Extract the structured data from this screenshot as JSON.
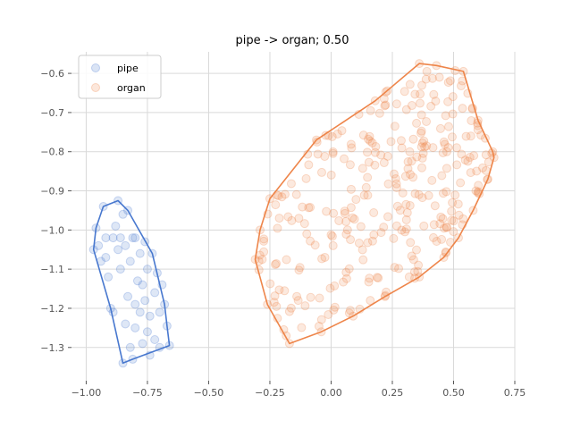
{
  "chart_data": {
    "type": "scatter",
    "title": "pipe -> organ; 0.50",
    "xlabel": "",
    "ylabel": "",
    "xlim": [
      -1.06,
      0.75
    ],
    "ylim": [
      -1.385,
      -0.545
    ],
    "xticks": [
      -1.0,
      -0.75,
      -0.5,
      -0.25,
      0.0,
      0.25,
      0.5,
      0.75
    ],
    "xtick_labels": [
      "−1.00",
      "−0.75",
      "−0.50",
      "−0.25",
      "0.00",
      "0.25",
      "0.50",
      "0.75"
    ],
    "yticks": [
      -0.6,
      -0.7,
      -0.8,
      -0.9,
      -1.0,
      -1.1,
      -1.2,
      -1.3
    ],
    "ytick_labels": [
      "−0.6",
      "−0.7",
      "−0.8",
      "−0.9",
      "−1.0",
      "−1.1",
      "−1.2",
      "−1.3"
    ],
    "grid": true,
    "legend_position": "top-left",
    "series": [
      {
        "name": "pipe",
        "color": "#4878cf",
        "hull": [
          [
            -0.97,
            -1.05
          ],
          [
            -0.96,
            -0.995
          ],
          [
            -0.93,
            -0.94
          ],
          [
            -0.87,
            -0.925
          ],
          [
            -0.83,
            -0.95
          ],
          [
            -0.73,
            -1.06
          ],
          [
            -0.68,
            -1.19
          ],
          [
            -0.67,
            -1.245
          ],
          [
            -0.66,
            -1.295
          ],
          [
            -0.81,
            -1.33
          ],
          [
            -0.85,
            -1.34
          ],
          [
            -0.9,
            -1.2
          ]
        ],
        "points": [
          [
            -0.97,
            -1.05
          ],
          [
            -0.96,
            -0.995
          ],
          [
            -0.95,
            -1.04
          ],
          [
            -0.94,
            -1.08
          ],
          [
            -0.93,
            -0.94
          ],
          [
            -0.92,
            -1.07
          ],
          [
            -0.91,
            -1.12
          ],
          [
            -0.9,
            -1.2
          ],
          [
            -0.89,
            -1.02
          ],
          [
            -0.88,
            -0.99
          ],
          [
            -0.87,
            -0.925
          ],
          [
            -0.87,
            -1.05
          ],
          [
            -0.86,
            -1.02
          ],
          [
            -0.86,
            -1.1
          ],
          [
            -0.85,
            -0.96
          ],
          [
            -0.85,
            -1.34
          ],
          [
            -0.84,
            -1.24
          ],
          [
            -0.83,
            -1.17
          ],
          [
            -0.83,
            -0.95
          ],
          [
            -0.82,
            -1.08
          ],
          [
            -0.82,
            -1.3
          ],
          [
            -0.81,
            -1.02
          ],
          [
            -0.81,
            -1.33
          ],
          [
            -0.8,
            -1.19
          ],
          [
            -0.8,
            -1.25
          ],
          [
            -0.79,
            -1.13
          ],
          [
            -0.78,
            -1.06
          ],
          [
            -0.78,
            -1.21
          ],
          [
            -0.77,
            -1.29
          ],
          [
            -0.77,
            -1.14
          ],
          [
            -0.76,
            -1.03
          ],
          [
            -0.76,
            -1.18
          ],
          [
            -0.75,
            -1.26
          ],
          [
            -0.74,
            -1.22
          ],
          [
            -0.74,
            -1.32
          ],
          [
            -0.73,
            -1.06
          ],
          [
            -0.72,
            -1.16
          ],
          [
            -0.72,
            -1.28
          ],
          [
            -0.71,
            -1.11
          ],
          [
            -0.7,
            -1.21
          ],
          [
            -0.7,
            -1.3
          ],
          [
            -0.69,
            -1.14
          ],
          [
            -0.68,
            -1.19
          ],
          [
            -0.67,
            -1.245
          ],
          [
            -0.66,
            -1.295
          ],
          [
            -0.92,
            -1.02
          ],
          [
            -0.89,
            -1.21
          ],
          [
            -0.84,
            -1.04
          ],
          [
            -0.8,
            -1.02
          ],
          [
            -0.75,
            -1.1
          ]
        ]
      },
      {
        "name": "organ",
        "color": "#ee854a",
        "hull": [
          [
            -0.31,
            -1.075
          ],
          [
            -0.29,
            -1.0
          ],
          [
            -0.25,
            -0.92
          ],
          [
            -0.06,
            -0.77
          ],
          [
            0.18,
            -0.67
          ],
          [
            0.36,
            -0.575
          ],
          [
            0.43,
            -0.58
          ],
          [
            0.54,
            -0.595
          ],
          [
            0.6,
            -0.72
          ],
          [
            0.66,
            -0.8
          ],
          [
            0.665,
            -0.815
          ],
          [
            0.64,
            -0.87
          ],
          [
            0.58,
            -0.95
          ],
          [
            0.52,
            -1.02
          ],
          [
            0.46,
            -1.07
          ],
          [
            0.36,
            -1.12
          ],
          [
            0.22,
            -1.17
          ],
          [
            0.09,
            -1.22
          ],
          [
            -0.04,
            -1.26
          ],
          [
            -0.17,
            -1.29
          ],
          [
            -0.26,
            -1.19
          ]
        ],
        "points": []
      }
    ]
  }
}
